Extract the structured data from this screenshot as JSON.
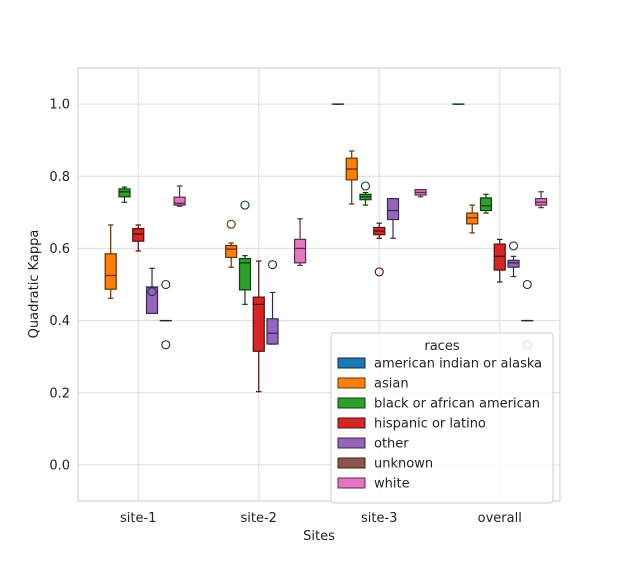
{
  "chart_data": {
    "type": "box",
    "title": "",
    "xlabel": "Sites",
    "ylabel": "Quadratic Kappa",
    "categories": [
      "site-1",
      "site-2",
      "site-3",
      "overall"
    ],
    "ylim": [
      -0.1,
      1.1
    ],
    "yticks": [
      "0.0",
      "0.2",
      "0.4",
      "0.6",
      "0.8",
      "1.0"
    ],
    "grid": true,
    "legend": {
      "title": "races",
      "position": "lower-right"
    },
    "series": [
      {
        "name": "american indian or alaska",
        "color": "#1f77b4",
        "boxes": [
          null,
          null,
          {
            "whislo": 1.0,
            "q1": 1.0,
            "med": 1.0,
            "q3": 1.0,
            "whishi": 1.0,
            "fliers": []
          },
          {
            "whislo": 1.0,
            "q1": 1.0,
            "med": 1.0,
            "q3": 1.0,
            "whishi": 1.0,
            "fliers": []
          }
        ]
      },
      {
        "name": "asian",
        "color": "#ff7f0e",
        "boxes": [
          {
            "whislo": 0.462,
            "q1": 0.487,
            "med": 0.525,
            "q3": 0.585,
            "whishi": 0.665,
            "fliers": []
          },
          {
            "whislo": 0.548,
            "q1": 0.575,
            "med": 0.598,
            "q3": 0.608,
            "whishi": 0.615,
            "fliers": [
              0.667
            ]
          },
          {
            "whislo": 0.723,
            "q1": 0.79,
            "med": 0.82,
            "q3": 0.85,
            "whishi": 0.87,
            "fliers": []
          },
          {
            "whislo": 0.643,
            "q1": 0.668,
            "med": 0.685,
            "q3": 0.698,
            "whishi": 0.72,
            "fliers": []
          }
        ]
      },
      {
        "name": "black or african american",
        "color": "#2ca02c",
        "boxes": [
          {
            "whislo": 0.728,
            "q1": 0.743,
            "med": 0.757,
            "q3": 0.765,
            "whishi": 0.77,
            "fliers": []
          },
          {
            "whislo": 0.445,
            "q1": 0.485,
            "med": 0.56,
            "q3": 0.572,
            "whishi": 0.58,
            "fliers": [
              0.72
            ]
          },
          {
            "whislo": 0.72,
            "q1": 0.735,
            "med": 0.743,
            "q3": 0.75,
            "whishi": 0.755,
            "fliers": [
              0.773
            ]
          },
          {
            "whislo": 0.698,
            "q1": 0.705,
            "med": 0.718,
            "q3": 0.74,
            "whishi": 0.75,
            "fliers": []
          }
        ]
      },
      {
        "name": "hispanic or latino",
        "color": "#d62728",
        "boxes": [
          {
            "whislo": 0.593,
            "q1": 0.62,
            "med": 0.64,
            "q3": 0.655,
            "whishi": 0.665,
            "fliers": []
          },
          {
            "whislo": 0.203,
            "q1": 0.315,
            "med": 0.445,
            "q3": 0.465,
            "whishi": 0.565,
            "fliers": []
          },
          {
            "whislo": 0.628,
            "q1": 0.638,
            "med": 0.648,
            "q3": 0.658,
            "whishi": 0.67,
            "fliers": [
              0.535
            ]
          },
          {
            "whislo": 0.507,
            "q1": 0.54,
            "med": 0.578,
            "q3": 0.612,
            "whishi": 0.625,
            "fliers": []
          }
        ]
      },
      {
        "name": "other",
        "color": "#9467bd",
        "boxes": [
          {
            "whislo": 0.42,
            "q1": 0.42,
            "med": 0.493,
            "q3": 0.493,
            "whishi": 0.545,
            "fliers": [
              0.48
            ]
          },
          {
            "whislo": 0.335,
            "q1": 0.335,
            "med": 0.365,
            "q3": 0.405,
            "whishi": 0.478,
            "fliers": [
              0.555
            ]
          },
          {
            "whislo": 0.628,
            "q1": 0.68,
            "med": 0.705,
            "q3": 0.738,
            "whishi": 0.738,
            "fliers": []
          },
          {
            "whislo": 0.522,
            "q1": 0.548,
            "med": 0.56,
            "q3": 0.567,
            "whishi": 0.578,
            "fliers": [
              0.607
            ]
          }
        ]
      },
      {
        "name": "unknown",
        "color": "#8c564b",
        "boxes": [
          {
            "whislo": 0.4,
            "q1": 0.4,
            "med": 0.4,
            "q3": 0.4,
            "whishi": 0.4,
            "fliers": [
              0.333,
              0.5
            ]
          },
          null,
          null,
          {
            "whislo": 0.4,
            "q1": 0.4,
            "med": 0.4,
            "q3": 0.4,
            "whishi": 0.4,
            "fliers": [
              0.333,
              0.5
            ]
          }
        ]
      },
      {
        "name": "white",
        "color": "#e377c2",
        "boxes": [
          {
            "whislo": 0.717,
            "q1": 0.72,
            "med": 0.725,
            "q3": 0.742,
            "whishi": 0.773,
            "fliers": []
          },
          {
            "whislo": 0.553,
            "q1": 0.56,
            "med": 0.6,
            "q3": 0.625,
            "whishi": 0.682,
            "fliers": []
          },
          {
            "whislo": 0.743,
            "q1": 0.748,
            "med": 0.755,
            "q3": 0.763,
            "whishi": 0.763,
            "fliers": []
          },
          {
            "whislo": 0.713,
            "q1": 0.72,
            "med": 0.728,
            "q3": 0.738,
            "whishi": 0.757,
            "fliers": []
          }
        ]
      }
    ]
  }
}
